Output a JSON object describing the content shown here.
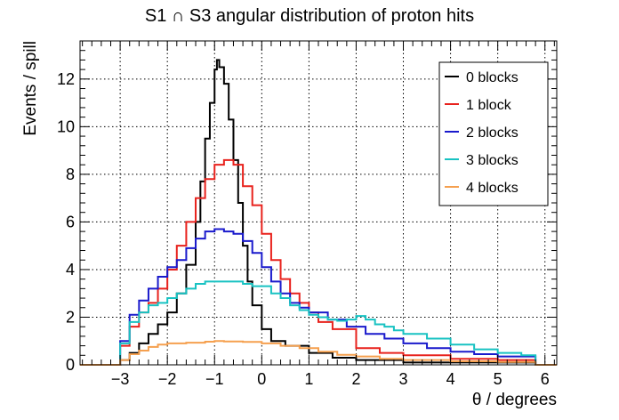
{
  "chart_data": {
    "type": "line",
    "title": "S1 ∩ S3 angular distribution of proton hits",
    "xlabel": "θ / degrees",
    "ylabel": "Events / spill",
    "xlim": [
      -3.85,
      6.25
    ],
    "ylim": [
      0,
      13.6
    ],
    "xticks": [
      -3,
      -2,
      -1,
      0,
      1,
      2,
      3,
      4,
      5,
      6
    ],
    "xtick_labels": [
      "−3",
      "−2",
      "−1",
      "0",
      "1",
      "2",
      "3",
      "4",
      "5",
      "6"
    ],
    "yticks": [
      0,
      2,
      4,
      6,
      8,
      10,
      12
    ],
    "ytick_labels": [
      "0",
      "2",
      "4",
      "6",
      "8",
      "10",
      "12"
    ],
    "grid": true,
    "legend_position": "top-right",
    "series": [
      {
        "name": "0 blocks",
        "color": "#000000",
        "points": [
          [
            -3.85,
            0
          ],
          [
            -3.1,
            0
          ],
          [
            -3.0,
            0.2
          ],
          [
            -2.8,
            0.5
          ],
          [
            -2.6,
            0.9
          ],
          [
            -2.4,
            1.3
          ],
          [
            -2.2,
            1.7
          ],
          [
            -2.0,
            2.2
          ],
          [
            -1.8,
            3.0
          ],
          [
            -1.6,
            4.2
          ],
          [
            -1.4,
            6.0
          ],
          [
            -1.3,
            7.7
          ],
          [
            -1.2,
            9.5
          ],
          [
            -1.1,
            11.0
          ],
          [
            -1.0,
            12.4
          ],
          [
            -0.95,
            12.8
          ],
          [
            -0.9,
            12.5
          ],
          [
            -0.8,
            11.8
          ],
          [
            -0.7,
            10.3
          ],
          [
            -0.6,
            8.6
          ],
          [
            -0.5,
            6.8
          ],
          [
            -0.4,
            5.0
          ],
          [
            -0.3,
            3.5
          ],
          [
            -0.2,
            2.5
          ],
          [
            0.0,
            1.5
          ],
          [
            0.2,
            1.0
          ],
          [
            0.5,
            0.8
          ],
          [
            1.0,
            0.5
          ],
          [
            1.5,
            0.3
          ],
          [
            2.0,
            0.2
          ],
          [
            3.0,
            0.1
          ],
          [
            5.8,
            0.1
          ],
          [
            5.8,
            0
          ],
          [
            6.25,
            0
          ]
        ]
      },
      {
        "name": "1 block",
        "color": "#e8221d",
        "points": [
          [
            -3.85,
            0
          ],
          [
            -3.1,
            0
          ],
          [
            -3.0,
            0.8
          ],
          [
            -2.8,
            1.6
          ],
          [
            -2.6,
            2.2
          ],
          [
            -2.4,
            2.6
          ],
          [
            -2.2,
            3.2
          ],
          [
            -2.0,
            4.0
          ],
          [
            -1.8,
            5.0
          ],
          [
            -1.6,
            6.0
          ],
          [
            -1.4,
            7.0
          ],
          [
            -1.2,
            7.8
          ],
          [
            -1.0,
            8.4
          ],
          [
            -0.8,
            8.6
          ],
          [
            -0.6,
            8.4
          ],
          [
            -0.4,
            7.5
          ],
          [
            -0.2,
            6.7
          ],
          [
            0.0,
            5.5
          ],
          [
            0.2,
            4.4
          ],
          [
            0.4,
            3.6
          ],
          [
            0.6,
            3.0
          ],
          [
            0.8,
            2.6
          ],
          [
            1.0,
            2.2
          ],
          [
            1.2,
            1.8
          ],
          [
            1.5,
            1.5
          ],
          [
            2.0,
            0.7
          ],
          [
            2.5,
            0.5
          ],
          [
            3.0,
            0.4
          ],
          [
            4.0,
            0.25
          ],
          [
            5.0,
            0.2
          ],
          [
            5.8,
            0.15
          ],
          [
            5.8,
            0
          ],
          [
            6.25,
            0
          ]
        ]
      },
      {
        "name": "2 blocks",
        "color": "#1a1acc",
        "points": [
          [
            -3.85,
            0
          ],
          [
            -3.1,
            0
          ],
          [
            -3.0,
            1.0
          ],
          [
            -2.8,
            2.1
          ],
          [
            -2.6,
            2.7
          ],
          [
            -2.4,
            3.2
          ],
          [
            -2.2,
            3.7
          ],
          [
            -2.0,
            4.1
          ],
          [
            -1.8,
            4.4
          ],
          [
            -1.6,
            4.9
          ],
          [
            -1.4,
            5.3
          ],
          [
            -1.2,
            5.6
          ],
          [
            -1.0,
            5.7
          ],
          [
            -0.8,
            5.6
          ],
          [
            -0.6,
            5.5
          ],
          [
            -0.4,
            5.2
          ],
          [
            -0.2,
            4.7
          ],
          [
            0.0,
            4.1
          ],
          [
            0.2,
            3.5
          ],
          [
            0.4,
            3.0
          ],
          [
            0.6,
            2.6
          ],
          [
            0.8,
            2.4
          ],
          [
            1.0,
            2.2
          ],
          [
            1.4,
            1.9
          ],
          [
            1.8,
            1.6
          ],
          [
            2.2,
            1.3
          ],
          [
            2.6,
            1.1
          ],
          [
            3.0,
            0.9
          ],
          [
            3.5,
            0.7
          ],
          [
            4.0,
            0.55
          ],
          [
            4.5,
            0.45
          ],
          [
            5.0,
            0.35
          ],
          [
            5.8,
            0.3
          ],
          [
            5.8,
            0
          ],
          [
            6.25,
            0
          ]
        ]
      },
      {
        "name": "3 blocks",
        "color": "#18c2c2",
        "points": [
          [
            -3.85,
            0
          ],
          [
            -3.1,
            0
          ],
          [
            -3.0,
            0.9
          ],
          [
            -2.8,
            1.8
          ],
          [
            -2.6,
            2.2
          ],
          [
            -2.4,
            2.5
          ],
          [
            -2.2,
            2.6
          ],
          [
            -2.0,
            2.8
          ],
          [
            -1.8,
            3.0
          ],
          [
            -1.6,
            3.2
          ],
          [
            -1.4,
            3.4
          ],
          [
            -1.2,
            3.5
          ],
          [
            -1.0,
            3.5
          ],
          [
            -0.8,
            3.5
          ],
          [
            -0.6,
            3.5
          ],
          [
            -0.4,
            3.4
          ],
          [
            -0.2,
            3.3
          ],
          [
            0.0,
            3.3
          ],
          [
            0.2,
            3.0
          ],
          [
            0.4,
            2.8
          ],
          [
            0.6,
            2.5
          ],
          [
            0.8,
            2.3
          ],
          [
            1.0,
            2.1
          ],
          [
            1.2,
            2.0
          ],
          [
            1.4,
            1.9
          ],
          [
            1.6,
            1.85
          ],
          [
            1.8,
            1.9
          ],
          [
            2.0,
            2.05
          ],
          [
            2.2,
            1.9
          ],
          [
            2.4,
            1.7
          ],
          [
            2.6,
            1.6
          ],
          [
            2.8,
            1.45
          ],
          [
            3.0,
            1.3
          ],
          [
            3.5,
            1.1
          ],
          [
            4.0,
            0.85
          ],
          [
            4.5,
            0.65
          ],
          [
            5.0,
            0.5
          ],
          [
            5.5,
            0.4
          ],
          [
            5.8,
            0.4
          ],
          [
            5.8,
            0
          ],
          [
            6.25,
            0
          ]
        ]
      },
      {
        "name": "4 blocks",
        "color": "#f5a04f",
        "points": [
          [
            -3.85,
            0
          ],
          [
            -3.1,
            0
          ],
          [
            -3.0,
            0.2
          ],
          [
            -2.8,
            0.45
          ],
          [
            -2.6,
            0.6
          ],
          [
            -2.4,
            0.75
          ],
          [
            -2.2,
            0.85
          ],
          [
            -2.0,
            0.9
          ],
          [
            -1.6,
            0.93
          ],
          [
            -1.2,
            0.97
          ],
          [
            -1.0,
            1.0
          ],
          [
            -0.8,
            0.98
          ],
          [
            -0.4,
            0.96
          ],
          [
            0.0,
            0.9
          ],
          [
            0.4,
            0.8
          ],
          [
            0.8,
            0.7
          ],
          [
            1.2,
            0.55
          ],
          [
            1.6,
            0.42
          ],
          [
            2.0,
            0.35
          ],
          [
            2.5,
            0.25
          ],
          [
            3.0,
            0.2
          ],
          [
            4.0,
            0.15
          ],
          [
            5.0,
            0.12
          ],
          [
            5.8,
            0.1
          ],
          [
            5.8,
            0
          ],
          [
            6.25,
            0
          ]
        ]
      }
    ]
  }
}
